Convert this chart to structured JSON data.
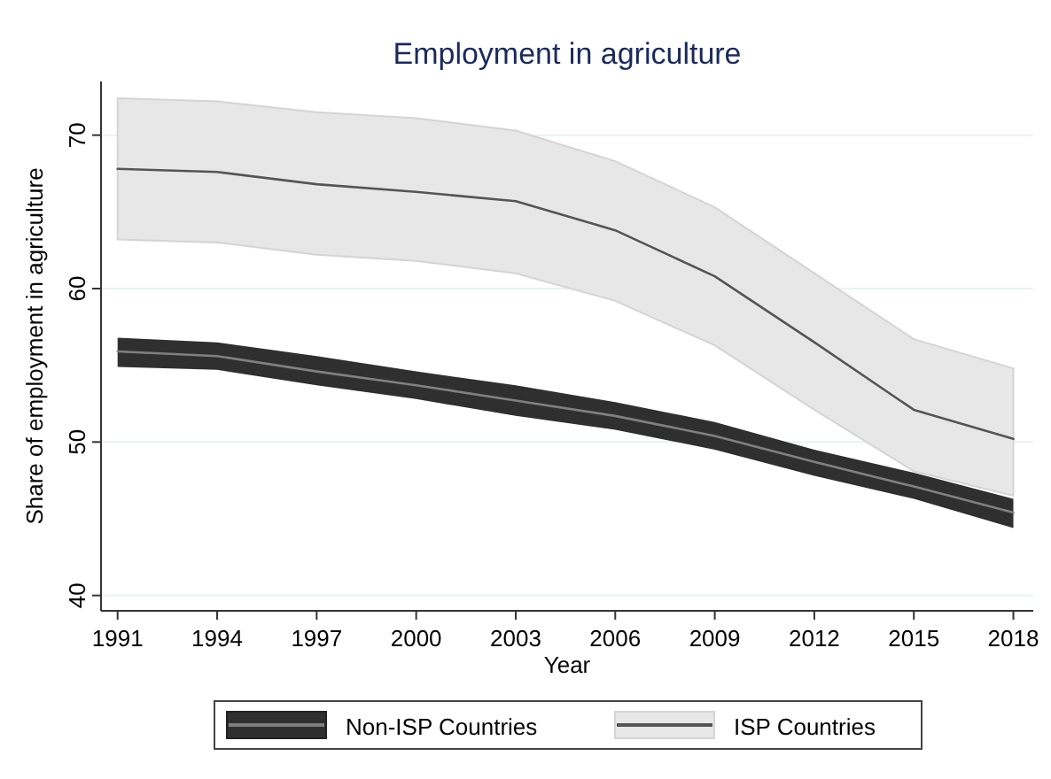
{
  "chart_data": {
    "type": "line",
    "title": "Employment in agriculture",
    "xlabel": "Year",
    "ylabel": "Share of employment in agriculture",
    "x": [
      1991,
      1994,
      1997,
      2000,
      2003,
      2006,
      2009,
      2012,
      2015,
      2018
    ],
    "series": [
      {
        "name": "Non-ISP Countries",
        "color": "#808080",
        "values": [
          55.9,
          55.6,
          54.6,
          53.7,
          52.7,
          51.7,
          50.4,
          48.7,
          47.1,
          45.4
        ],
        "lower": [
          54.9,
          54.7,
          53.7,
          52.8,
          51.7,
          50.8,
          49.5,
          47.8,
          46.3,
          44.4
        ],
        "upper": [
          56.8,
          56.5,
          55.6,
          54.6,
          53.7,
          52.6,
          51.3,
          49.5,
          48.0,
          46.3
        ]
      },
      {
        "name": "ISP Countries",
        "color": "#555555",
        "values": [
          67.8,
          67.6,
          66.8,
          66.3,
          65.7,
          63.8,
          60.8,
          56.5,
          52.1,
          50.2
        ],
        "lower": [
          63.2,
          63.0,
          62.2,
          61.8,
          61.0,
          59.2,
          56.3,
          52.1,
          48.1,
          46.5
        ],
        "upper": [
          72.4,
          72.2,
          71.5,
          71.1,
          70.3,
          68.3,
          65.3,
          61.0,
          56.7,
          54.8
        ]
      }
    ],
    "xlim": [
      1990.5,
      2018.6
    ],
    "xticks": [
      1991,
      1994,
      1997,
      2000,
      2003,
      2006,
      2009,
      2012,
      2015,
      2018
    ],
    "ylim": [
      39,
      73.5
    ],
    "yticks": [
      40,
      50,
      60,
      70
    ],
    "grid": "y",
    "legend": "bottom",
    "marker": "none",
    "line_style": "solid"
  }
}
